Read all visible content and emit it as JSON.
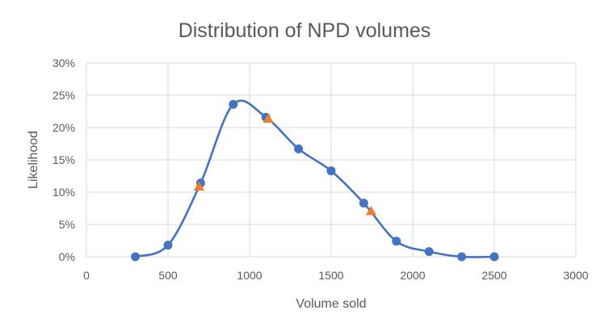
{
  "chart_data": {
    "type": "scatter",
    "title": "Distribution of NPD volumes",
    "xlabel": "Volume sold",
    "ylabel": "Likelihood",
    "xlim": [
      0,
      3000
    ],
    "ylim": [
      0,
      0.3
    ],
    "x_ticks": [
      0,
      500,
      1000,
      1500,
      2000,
      2500,
      3000
    ],
    "x_tick_labels": [
      "0",
      "500",
      "1000",
      "1500",
      "2000",
      "2500",
      "3000"
    ],
    "y_ticks": [
      0,
      0.05,
      0.1,
      0.15,
      0.2,
      0.25,
      0.3
    ],
    "y_tick_labels": [
      "0%",
      "5%",
      "10%",
      "15%",
      "20%",
      "25%",
      "30%"
    ],
    "grid": true,
    "legend": "none",
    "series": [
      {
        "marker": "circle",
        "smooth_line": true,
        "color": "#4472C4",
        "x": [
          300,
          500,
          700,
          900,
          1100,
          1300,
          1500,
          1700,
          1900,
          2100,
          2300,
          2500
        ],
        "y": [
          0.0,
          0.018,
          0.114,
          0.236,
          0.216,
          0.167,
          0.133,
          0.083,
          0.024,
          0.008,
          0.0,
          0.0
        ]
      },
      {
        "marker": "triangle",
        "smooth_line": false,
        "color": "#ED7D31",
        "x": [
          690,
          1115,
          1745
        ],
        "y": [
          0.108,
          0.213,
          0.07
        ]
      }
    ]
  }
}
